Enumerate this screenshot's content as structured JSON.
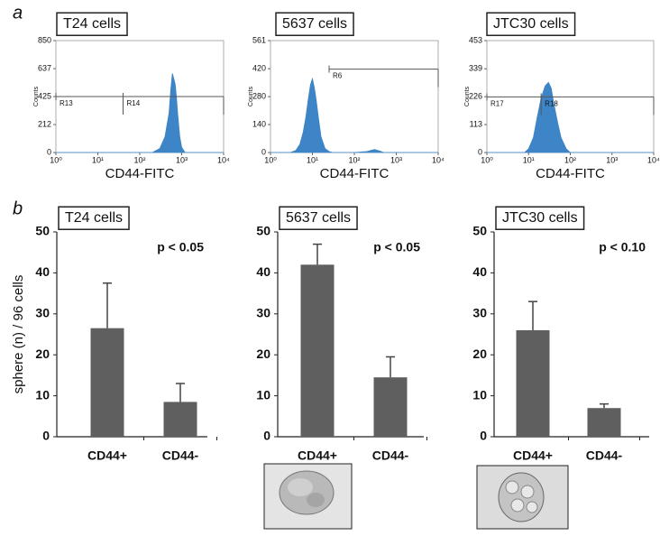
{
  "panels": [
    "a",
    "b"
  ],
  "chart_data": [
    {
      "type": "area",
      "title": "T24 cells",
      "xlabel": "CD44-FITC",
      "ylabel": "Counts",
      "xscale": "log",
      "xlim": [
        1,
        10000
      ],
      "xticks": [
        {
          "value": 1,
          "label": "10⁰"
        },
        {
          "value": 10,
          "label": "10¹"
        },
        {
          "value": 100,
          "label": "10²"
        },
        {
          "value": 1000,
          "label": "10³"
        },
        {
          "value": 10000,
          "label": "10⁴"
        }
      ],
      "ylim": [
        0,
        850
      ],
      "yticks": [
        0,
        212,
        425,
        637,
        850
      ],
      "series": [
        {
          "color": "#3d85c6",
          "x": [
            1,
            200,
            300,
            400,
            500,
            550,
            600,
            650,
            700,
            750,
            800,
            900,
            1000,
            1200,
            10000
          ],
          "values": [
            0,
            0,
            30,
            120,
            300,
            480,
            600,
            560,
            520,
            420,
            300,
            120,
            40,
            0,
            0
          ]
        }
      ],
      "gates": [
        {
          "name": "R13",
          "range": [
            1,
            40
          ],
          "level": 425
        },
        {
          "name": "R14",
          "range": [
            40,
            10000
          ],
          "level": 425
        }
      ]
    },
    {
      "type": "area",
      "title": "5637 cells",
      "xlabel": "CD44-FITC",
      "ylabel": "Counts",
      "xscale": "log",
      "xlim": [
        1,
        10000
      ],
      "xticks": [
        {
          "value": 1,
          "label": "10⁰"
        },
        {
          "value": 10,
          "label": "10¹"
        },
        {
          "value": 100,
          "label": "10²"
        },
        {
          "value": 1000,
          "label": "10³"
        },
        {
          "value": 10000,
          "label": "10⁴"
        }
      ],
      "ylim": [
        0,
        561
      ],
      "yticks": [
        0,
        140,
        280,
        420,
        561
      ],
      "series": [
        {
          "color": "#3d85c6",
          "x": [
            1,
            3,
            4,
            5,
            6,
            7,
            8,
            9,
            10,
            11,
            12,
            14,
            16,
            20,
            25,
            30,
            100,
            200,
            300,
            400,
            500,
            10000
          ],
          "values": [
            0,
            0,
            10,
            40,
            100,
            180,
            270,
            340,
            370,
            330,
            280,
            170,
            80,
            20,
            5,
            0,
            0,
            5,
            15,
            8,
            0,
            0
          ]
        }
      ],
      "gates": [
        {
          "name": "R6",
          "range": [
            25,
            10000
          ],
          "level": 418
        }
      ]
    },
    {
      "type": "area",
      "title": "JTC30 cells",
      "xlabel": "CD44-FITC",
      "ylabel": "Counts",
      "xscale": "log",
      "xlim": [
        1,
        10000
      ],
      "xticks": [
        {
          "value": 1,
          "label": "10⁰"
        },
        {
          "value": 10,
          "label": "10¹"
        },
        {
          "value": 100,
          "label": "10²"
        },
        {
          "value": 1000,
          "label": "10³"
        },
        {
          "value": 10000,
          "label": "10⁴"
        }
      ],
      "ylim": [
        0,
        453
      ],
      "yticks": [
        0,
        113,
        226,
        339,
        453
      ],
      "series": [
        {
          "color": "#3d85c6",
          "x": [
            1,
            8,
            10,
            13,
            16,
            20,
            25,
            30,
            35,
            40,
            50,
            60,
            80,
            100,
            10000
          ],
          "values": [
            0,
            0,
            15,
            60,
            140,
            220,
            270,
            284,
            260,
            200,
            120,
            60,
            15,
            0,
            0
          ]
        }
      ],
      "gates": [
        {
          "name": "R17",
          "range": [
            1,
            20
          ],
          "level": 225
        },
        {
          "name": "R18",
          "range": [
            20,
            10000
          ],
          "level": 225
        }
      ]
    },
    {
      "type": "bar",
      "title": "T24 cells",
      "ylabel": "sphere (n) / 96 cells",
      "annotation": "p < 0.05",
      "color": "#5f5f5f",
      "categories": [
        "CD44+",
        "CD44-"
      ],
      "values": [
        26.5,
        8.5
      ],
      "errors": [
        11,
        4.5
      ],
      "ylim": [
        0,
        50
      ],
      "yticks": [
        0,
        10,
        20,
        30,
        40,
        50
      ]
    },
    {
      "type": "bar",
      "title": "5637 cells",
      "annotation": "p < 0.05",
      "color": "#5f5f5f",
      "categories": [
        "CD44+",
        "CD44-"
      ],
      "values": [
        42,
        14.5
      ],
      "errors": [
        5,
        5
      ],
      "ylim": [
        0,
        50
      ],
      "yticks": [
        0,
        10,
        20,
        30,
        40,
        50
      ]
    },
    {
      "type": "bar",
      "title": "JTC30 cells",
      "annotation": "p < 0.10",
      "color": "#5f5f5f",
      "categories": [
        "CD44+",
        "CD44-"
      ],
      "values": [
        26,
        7
      ],
      "errors": [
        7,
        1
      ],
      "ylim": [
        0,
        50
      ],
      "yticks": [
        0,
        10,
        20,
        30,
        40,
        50
      ]
    }
  ]
}
